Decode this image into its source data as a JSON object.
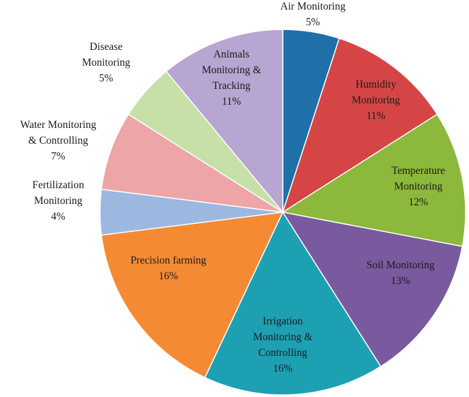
{
  "chart_data": {
    "type": "pie",
    "start_angle_deg": 90,
    "direction": "clockwise",
    "legend": "none",
    "title": "",
    "slices": [
      {
        "label": [
          "Air Monitoring",
          "5%"
        ],
        "value": 5,
        "color": "#1f6fa8"
      },
      {
        "label": [
          "Humidity",
          "Monitoring",
          "11%"
        ],
        "value": 11,
        "color": "#d64545"
      },
      {
        "label": [
          "Temperature",
          "Monitoring",
          "12%"
        ],
        "value": 12,
        "color": "#8cb83c"
      },
      {
        "label": [
          "Soil Monitoring",
          "13%"
        ],
        "value": 13,
        "color": "#7a5a9e"
      },
      {
        "label": [
          "Irrigation",
          "Monitoring &",
          "Controlling",
          "16%"
        ],
        "value": 16,
        "color": "#1ea0b3"
      },
      {
        "label": [
          "Precision farming",
          "16%"
        ],
        "value": 16,
        "color": "#f58a34"
      },
      {
        "label": [
          "Fertilization",
          "Monitoring",
          "4%"
        ],
        "value": 4,
        "color": "#9db8e0"
      },
      {
        "label": [
          "Water Monitoring",
          "& Controlling",
          "7%"
        ],
        "value": 7,
        "color": "#eda5a7"
      },
      {
        "label": [
          "Disease",
          "Monitoring",
          "5%"
        ],
        "value": 5,
        "color": "#c6e0a8"
      },
      {
        "label": [
          "Animals",
          "Monitoring &",
          "Tracking",
          "11%"
        ],
        "value": 11,
        "color": "#b7a6d1"
      }
    ]
  }
}
